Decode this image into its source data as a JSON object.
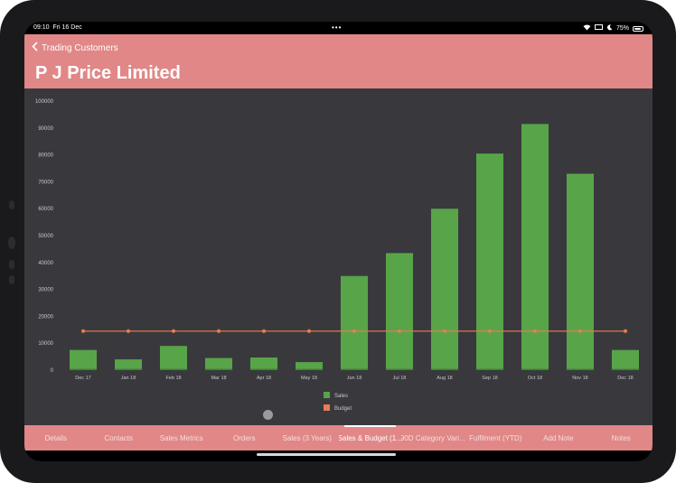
{
  "status_bar": {
    "time": "09:10",
    "date": "Fri 16 Dec",
    "battery": "75%"
  },
  "header": {
    "back_label": "Trading Customers",
    "title": "P J Price Limited"
  },
  "chart_data": {
    "type": "bar",
    "categories": [
      "Dec 17",
      "Jan 18",
      "Feb 18",
      "Mar 18",
      "Apr 18",
      "May 18",
      "Jun 18",
      "Jul 18",
      "Aug 18",
      "Sep 18",
      "Oct 18",
      "Nov 18",
      "Dec 18"
    ],
    "series": [
      {
        "name": "Sales",
        "type": "bar",
        "values": [
          7500,
          4000,
          9000,
          4500,
          4700,
          3000,
          35000,
          43500,
          60000,
          80500,
          91500,
          73000,
          7500
        ]
      },
      {
        "name": "Budget",
        "type": "line",
        "values": [
          14500,
          14500,
          14500,
          14500,
          14500,
          14500,
          14500,
          14500,
          14500,
          14500,
          14500,
          14500,
          14500
        ]
      }
    ],
    "yticks": [
      "0",
      "10000",
      "20000",
      "30000",
      "40000",
      "50000",
      "60000",
      "70000",
      "80000",
      "90000",
      "100000"
    ],
    "ylim": [
      0,
      100000
    ],
    "legend": [
      "Sales",
      "Budget"
    ],
    "legend_position": "bottom",
    "colors": {
      "sales": "#58a449",
      "budget": "#e97c56",
      "grid": "#4a4a4f",
      "text": "#c8c8cc"
    }
  },
  "tabs": [
    {
      "label": "Details",
      "active": false
    },
    {
      "label": "Contacts",
      "active": false
    },
    {
      "label": "Sales Metrics",
      "active": false
    },
    {
      "label": "Orders",
      "active": false
    },
    {
      "label": "Sales (3 Years)",
      "active": false
    },
    {
      "label": "Sales & Budget (1...",
      "active": true
    },
    {
      "label": "90D Category Vari...",
      "active": false
    },
    {
      "label": "Fulfilment (YTD)",
      "active": false
    },
    {
      "label": "Add Note",
      "active": false
    },
    {
      "label": "Notes",
      "active": false
    }
  ]
}
